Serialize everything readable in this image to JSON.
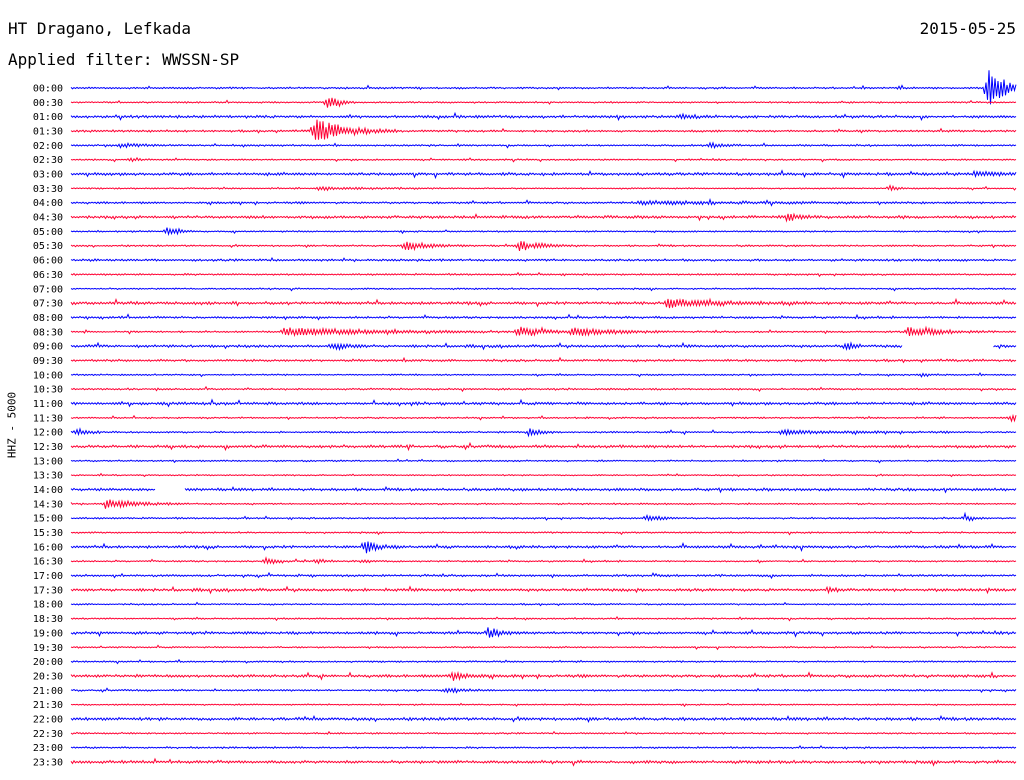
{
  "header": {
    "station": "HT Dragano, Lefkada",
    "date": "2015-05-25",
    "filter_prefix": "Applied filter: ",
    "filter_name": "WWSSN-SP"
  },
  "chart_data": {
    "type": "line",
    "title": "HT Dragano, Lefkada",
    "date": "2015-05-25",
    "ylabel": "HHZ - 5000",
    "filter": "WWSSN-SP",
    "row_interval_minutes": 30,
    "colors": {
      "even_rows": "#0000ff",
      "odd_rows": "#ff0033"
    },
    "rows": [
      {
        "time": "00:00",
        "noise": 1.0,
        "events": [
          {
            "pos": 0.969,
            "amp": 22,
            "dur": 0.018
          },
          {
            "pos": 0.875,
            "amp": 2,
            "dur": 0.004
          }
        ],
        "gaps": []
      },
      {
        "time": "00:30",
        "noise": 0.9,
        "events": [
          {
            "pos": 0.271,
            "amp": 7,
            "dur": 0.01
          }
        ],
        "gaps": []
      },
      {
        "time": "01:00",
        "noise": 1.5,
        "events": [
          {
            "pos": 0.643,
            "amp": 2.5,
            "dur": 0.014
          }
        ],
        "gaps": []
      },
      {
        "time": "01:30",
        "noise": 1.2,
        "events": [
          {
            "pos": 0.256,
            "amp": 13,
            "dur": 0.03
          }
        ],
        "gaps": []
      },
      {
        "time": "02:00",
        "noise": 1.0,
        "events": [
          {
            "pos": 0.676,
            "amp": 3,
            "dur": 0.012
          },
          {
            "pos": 0.052,
            "amp": 2,
            "dur": 0.02
          }
        ],
        "gaps": []
      },
      {
        "time": "02:30",
        "noise": 0.9,
        "events": [
          {
            "pos": 0.063,
            "amp": 2.5,
            "dur": 0.008
          }
        ],
        "gaps": []
      },
      {
        "time": "03:00",
        "noise": 1.6,
        "events": [
          {
            "pos": 0.955,
            "amp": 2,
            "dur": 0.03
          }
        ],
        "gaps": []
      },
      {
        "time": "03:30",
        "noise": 0.8,
        "events": [
          {
            "pos": 0.866,
            "amp": 4,
            "dur": 0.006
          },
          {
            "pos": 0.26,
            "amp": 1.5,
            "dur": 0.05
          }
        ],
        "gaps": []
      },
      {
        "time": "04:00",
        "noise": 1.2,
        "events": [
          {
            "pos": 0.6,
            "amp": 1.5,
            "dur": 0.1
          }
        ],
        "gaps": []
      },
      {
        "time": "04:30",
        "noise": 1.6,
        "events": [
          {
            "pos": 0.757,
            "amp": 4,
            "dur": 0.012
          }
        ],
        "gaps": []
      },
      {
        "time": "05:00",
        "noise": 0.9,
        "events": [
          {
            "pos": 0.101,
            "amp": 6,
            "dur": 0.01
          }
        ],
        "gaps": []
      },
      {
        "time": "05:30",
        "noise": 1.0,
        "events": [
          {
            "pos": 0.353,
            "amp": 5,
            "dur": 0.022
          },
          {
            "pos": 0.474,
            "amp": 5,
            "dur": 0.022
          }
        ],
        "gaps": []
      },
      {
        "time": "06:00",
        "noise": 1.2,
        "events": [],
        "gaps": []
      },
      {
        "time": "06:30",
        "noise": 1.0,
        "events": [],
        "gaps": []
      },
      {
        "time": "07:00",
        "noise": 0.9,
        "events": [],
        "gaps": []
      },
      {
        "time": "07:30",
        "noise": 1.6,
        "events": [
          {
            "pos": 0.63,
            "amp": 4,
            "dur": 0.05
          }
        ],
        "gaps": []
      },
      {
        "time": "08:00",
        "noise": 1.2,
        "events": [],
        "gaps": []
      },
      {
        "time": "08:30",
        "noise": 1.0,
        "events": [
          {
            "pos": 0.225,
            "amp": 4,
            "dur": 0.09
          },
          {
            "pos": 0.472,
            "amp": 5,
            "dur": 0.025
          },
          {
            "pos": 0.53,
            "amp": 4,
            "dur": 0.04
          },
          {
            "pos": 0.885,
            "amp": 5,
            "dur": 0.03
          }
        ],
        "gaps": []
      },
      {
        "time": "09:00",
        "noise": 1.5,
        "events": [
          {
            "pos": 0.276,
            "amp": 4,
            "dur": 0.015
          },
          {
            "pos": 0.82,
            "amp": 6,
            "dur": 0.006
          }
        ],
        "gaps": [
          [
            0.88,
            0.975
          ]
        ]
      },
      {
        "time": "09:30",
        "noise": 1.3,
        "events": [],
        "gaps": []
      },
      {
        "time": "10:00",
        "noise": 0.9,
        "events": [
          {
            "pos": 0.9,
            "amp": 2,
            "dur": 0.006
          }
        ],
        "gaps": []
      },
      {
        "time": "10:30",
        "noise": 1.0,
        "events": [],
        "gaps": []
      },
      {
        "time": "11:00",
        "noise": 1.6,
        "events": [],
        "gaps": []
      },
      {
        "time": "11:30",
        "noise": 0.9,
        "events": [
          {
            "pos": 0.995,
            "amp": 6,
            "dur": 0.006
          }
        ],
        "gaps": []
      },
      {
        "time": "12:00",
        "noise": 1.0,
        "events": [
          {
            "pos": 0.006,
            "amp": 4,
            "dur": 0.01
          },
          {
            "pos": 0.483,
            "amp": 4,
            "dur": 0.012
          },
          {
            "pos": 0.75,
            "amp": 2,
            "dur": 0.06
          }
        ],
        "gaps": []
      },
      {
        "time": "12:30",
        "noise": 1.6,
        "events": [],
        "gaps": []
      },
      {
        "time": "13:00",
        "noise": 0.9,
        "events": [],
        "gaps": []
      },
      {
        "time": "13:30",
        "noise": 0.8,
        "events": [],
        "gaps": []
      },
      {
        "time": "14:00",
        "noise": 1.5,
        "events": [],
        "gaps": [
          [
            0.09,
            0.12
          ]
        ]
      },
      {
        "time": "14:30",
        "noise": 0.9,
        "events": [
          {
            "pos": 0.035,
            "amp": 5,
            "dur": 0.03
          }
        ],
        "gaps": []
      },
      {
        "time": "15:00",
        "noise": 1.0,
        "events": [
          {
            "pos": 0.609,
            "amp": 4,
            "dur": 0.012
          },
          {
            "pos": 0.945,
            "amp": 3,
            "dur": 0.01
          }
        ],
        "gaps": []
      },
      {
        "time": "15:30",
        "noise": 0.9,
        "events": [],
        "gaps": []
      },
      {
        "time": "16:00",
        "noise": 1.5,
        "events": [
          {
            "pos": 0.31,
            "amp": 7,
            "dur": 0.012
          }
        ],
        "gaps": []
      },
      {
        "time": "16:30",
        "noise": 0.9,
        "events": [
          {
            "pos": 0.205,
            "amp": 4,
            "dur": 0.01
          },
          {
            "pos": 0.259,
            "amp": 3,
            "dur": 0.008
          },
          {
            "pos": 0.308,
            "amp": 2,
            "dur": 0.006
          }
        ],
        "gaps": []
      },
      {
        "time": "17:00",
        "noise": 1.2,
        "events": [],
        "gaps": []
      },
      {
        "time": "17:30",
        "noise": 1.6,
        "events": [
          {
            "pos": 0.8,
            "amp": 2,
            "dur": 0.01
          }
        ],
        "gaps": []
      },
      {
        "time": "18:00",
        "noise": 0.9,
        "events": [],
        "gaps": []
      },
      {
        "time": "18:30",
        "noise": 0.9,
        "events": [],
        "gaps": []
      },
      {
        "time": "19:00",
        "noise": 1.5,
        "events": [
          {
            "pos": 0.44,
            "amp": 6,
            "dur": 0.012
          }
        ],
        "gaps": []
      },
      {
        "time": "19:30",
        "noise": 0.9,
        "events": [],
        "gaps": []
      },
      {
        "time": "20:00",
        "noise": 0.9,
        "events": [],
        "gaps": []
      },
      {
        "time": "20:30",
        "noise": 1.6,
        "events": [
          {
            "pos": 0.402,
            "amp": 5,
            "dur": 0.015
          }
        ],
        "gaps": []
      },
      {
        "time": "21:00",
        "noise": 1.0,
        "events": [
          {
            "pos": 0.395,
            "amp": 2.5,
            "dur": 0.02
          }
        ],
        "gaps": []
      },
      {
        "time": "21:30",
        "noise": 0.8,
        "events": [],
        "gaps": []
      },
      {
        "time": "22:00",
        "noise": 1.7,
        "events": [],
        "gaps": []
      },
      {
        "time": "22:30",
        "noise": 0.9,
        "events": [],
        "gaps": []
      },
      {
        "time": "23:00",
        "noise": 1.0,
        "events": [],
        "gaps": []
      },
      {
        "time": "23:30",
        "noise": 1.7,
        "events": [],
        "gaps": []
      }
    ]
  }
}
